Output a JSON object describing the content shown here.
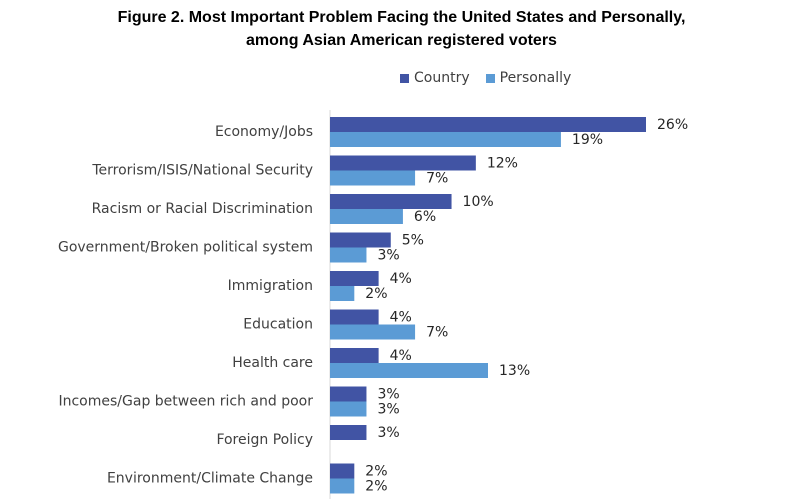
{
  "chart_data": {
    "type": "bar",
    "orientation": "horizontal",
    "title": "Figure 2. Most Important Problem Facing the United States and Personally,",
    "subtitle": "among Asian American registered voters",
    "legend_position": "top",
    "categories": [
      "Economy/Jobs",
      "Terrorism/ISIS/National Security",
      "Racism or Racial Discrimination",
      "Government/Broken political system",
      "Immigration",
      "Education",
      "Health care",
      "Incomes/Gap between rich and poor",
      "Foreign Policy",
      "Environment/Climate Change"
    ],
    "series": [
      {
        "name": "Country",
        "color": "#4154A4",
        "values": [
          26,
          12,
          10,
          5,
          4,
          4,
          4,
          3,
          3,
          2
        ],
        "labels": [
          "26%",
          "12%",
          "10%",
          "5%",
          "4%",
          "4%",
          "4%",
          "3%",
          "3%",
          "2%"
        ]
      },
      {
        "name": "Personally",
        "color": "#5B9BD5",
        "values": [
          19,
          7,
          6,
          3,
          2,
          7,
          13,
          3,
          null,
          2
        ],
        "labels": [
          "19%",
          "7%",
          "6%",
          "3%",
          "2%",
          "7%",
          "13%",
          "3%",
          null,
          "2%"
        ]
      }
    ],
    "xlim": [
      0,
      28
    ],
    "grid": false
  }
}
